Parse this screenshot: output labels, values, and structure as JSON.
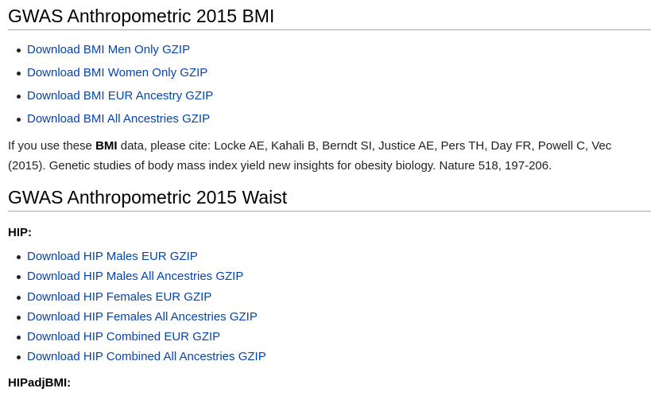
{
  "sections": [
    {
      "title": "GWAS Anthropometric 2015 BMI",
      "links": [
        "Download BMI Men Only GZIP",
        "Download BMI Women Only GZIP",
        "Download BMI EUR Ancestry GZIP",
        "Download BMI All Ancestries GZIP"
      ],
      "citation": {
        "prefix": "If you use these ",
        "bold": "BMI",
        "line1_suffix": " data, please cite: Locke AE, Kahali B, Berndt SI, Justice AE, Pers TH, Day FR, Powell C, Vec",
        "line2": "(2015). Genetic studies of body mass index yield new insights for obesity biology. Nature 518, 197-206."
      }
    },
    {
      "title": "GWAS Anthropometric 2015 Waist",
      "subsections": [
        {
          "label": "HIP:",
          "links": [
            "Download HIP Males EUR GZIP",
            "Download HIP Males All Ancestries GZIP",
            "Download HIP Females EUR GZIP",
            "Download HIP Females All Ancestries GZIP",
            "Download HIP Combined EUR GZIP",
            "Download HIP Combined All Ancestries GZIP"
          ]
        },
        {
          "label": "HIPadjBMI:"
        }
      ]
    }
  ],
  "colors": {
    "link": "#0645ad",
    "text": "#222222",
    "rule": "#a2a9b1"
  }
}
